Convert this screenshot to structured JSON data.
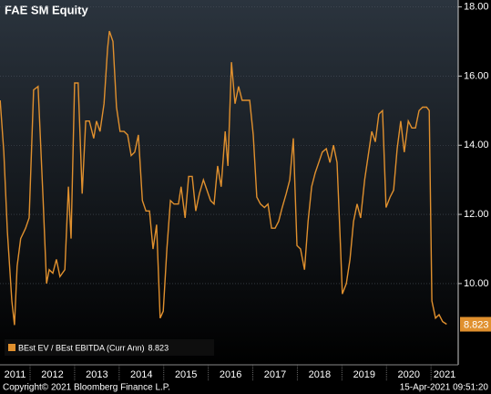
{
  "chart_data": {
    "type": "line",
    "title": "FAE SM Equity",
    "series": [
      {
        "name": "BEst EV / BEst EBITDA (Curr Ann)",
        "color": "#e0902e",
        "x": [
          2011.33,
          2011.41,
          2011.49,
          2011.59,
          2011.65,
          2011.71,
          2011.79,
          2011.9,
          2011.98,
          2012.08,
          2012.18,
          2012.29,
          2012.37,
          2012.43,
          2012.51,
          2012.59,
          2012.67,
          2012.78,
          2012.86,
          2012.92,
          2013.0,
          2013.08,
          2013.17,
          2013.25,
          2013.33,
          2013.43,
          2013.49,
          2013.57,
          2013.66,
          2013.74,
          2013.78,
          2013.86,
          2013.94,
          2014.02,
          2014.11,
          2014.19,
          2014.27,
          2014.35,
          2014.43,
          2014.52,
          2014.6,
          2014.68,
          2014.76,
          2014.84,
          2014.92,
          2014.99,
          2015.07,
          2015.15,
          2015.23,
          2015.33,
          2015.39,
          2015.48,
          2015.56,
          2015.64,
          2015.72,
          2015.8,
          2015.89,
          2015.97,
          2016.05,
          2016.13,
          2016.21,
          2016.29,
          2016.38,
          2016.44,
          2016.52,
          2016.6,
          2016.68,
          2016.76,
          2016.85,
          2016.93,
          2017.01,
          2017.09,
          2017.17,
          2017.26,
          2017.34,
          2017.42,
          2017.5,
          2017.58,
          2017.66,
          2017.75,
          2017.83,
          2017.91,
          2017.99,
          2018.07,
          2018.16,
          2018.24,
          2018.32,
          2018.4,
          2018.48,
          2018.56,
          2018.65,
          2018.73,
          2018.81,
          2018.89,
          2018.97,
          2019.01,
          2019.1,
          2019.18,
          2019.26,
          2019.34,
          2019.42,
          2019.51,
          2019.59,
          2019.67,
          2019.75,
          2019.83,
          2019.91,
          2019.99,
          2020.08,
          2020.16,
          2020.24,
          2020.32,
          2020.4,
          2020.49,
          2020.57,
          2020.65,
          2020.73,
          2020.81,
          2020.9,
          2020.96,
          2021.02,
          2021.1,
          2021.18,
          2021.26,
          2021.35
        ],
        "values": [
          15.3,
          13.8,
          11.5,
          9.5,
          8.8,
          10.5,
          11.3,
          11.6,
          11.9,
          15.6,
          15.7,
          12.5,
          10.0,
          10.4,
          10.3,
          10.7,
          10.2,
          10.4,
          12.8,
          11.3,
          15.8,
          15.8,
          12.6,
          14.7,
          14.7,
          14.2,
          14.7,
          14.4,
          15.2,
          16.8,
          17.3,
          17.0,
          15.1,
          14.4,
          14.4,
          14.3,
          13.7,
          13.8,
          14.3,
          12.4,
          12.1,
          12.1,
          11.0,
          11.7,
          9.0,
          9.2,
          11.0,
          12.4,
          12.3,
          12.3,
          12.8,
          11.9,
          13.1,
          13.1,
          12.1,
          12.6,
          13.0,
          12.7,
          12.4,
          12.3,
          13.4,
          12.8,
          14.4,
          13.4,
          16.4,
          15.2,
          15.7,
          15.3,
          15.3,
          15.3,
          14.3,
          12.5,
          12.3,
          12.2,
          12.3,
          11.6,
          11.6,
          11.8,
          12.2,
          12.6,
          13.0,
          14.2,
          11.1,
          11.0,
          10.4,
          11.8,
          12.8,
          13.2,
          13.5,
          13.8,
          13.9,
          13.5,
          14.0,
          13.5,
          11.0,
          9.7,
          10.0,
          10.7,
          11.8,
          12.3,
          11.9,
          13.0,
          13.7,
          14.4,
          14.1,
          14.9,
          15.0,
          12.2,
          12.5,
          12.7,
          13.9,
          14.7,
          13.8,
          14.7,
          14.5,
          14.5,
          15.0,
          15.1,
          15.1,
          15.0,
          9.5,
          9.0,
          9.1,
          8.9,
          8.823
        ]
      }
    ],
    "xlim": [
      2011.325,
      2021.61
    ],
    "xticks": [
      2011,
      2012,
      2013,
      2014,
      2015,
      2016,
      2017,
      2018,
      2019,
      2020,
      2021
    ],
    "ylim": [
      7.65,
      18.2
    ],
    "yticks": [
      {
        "value": 10,
        "label": "10.00"
      },
      {
        "value": 12,
        "label": "12.00"
      },
      {
        "value": 14,
        "label": "14.00"
      },
      {
        "value": 16,
        "label": "16.00"
      },
      {
        "value": 18,
        "label": "18.00"
      }
    ],
    "grid": true,
    "legend": "lower left",
    "copyright": "Copyright© 2021 Bloomberg Finance L.P.",
    "timestamp": "15-Apr-2021 09:51:20"
  }
}
